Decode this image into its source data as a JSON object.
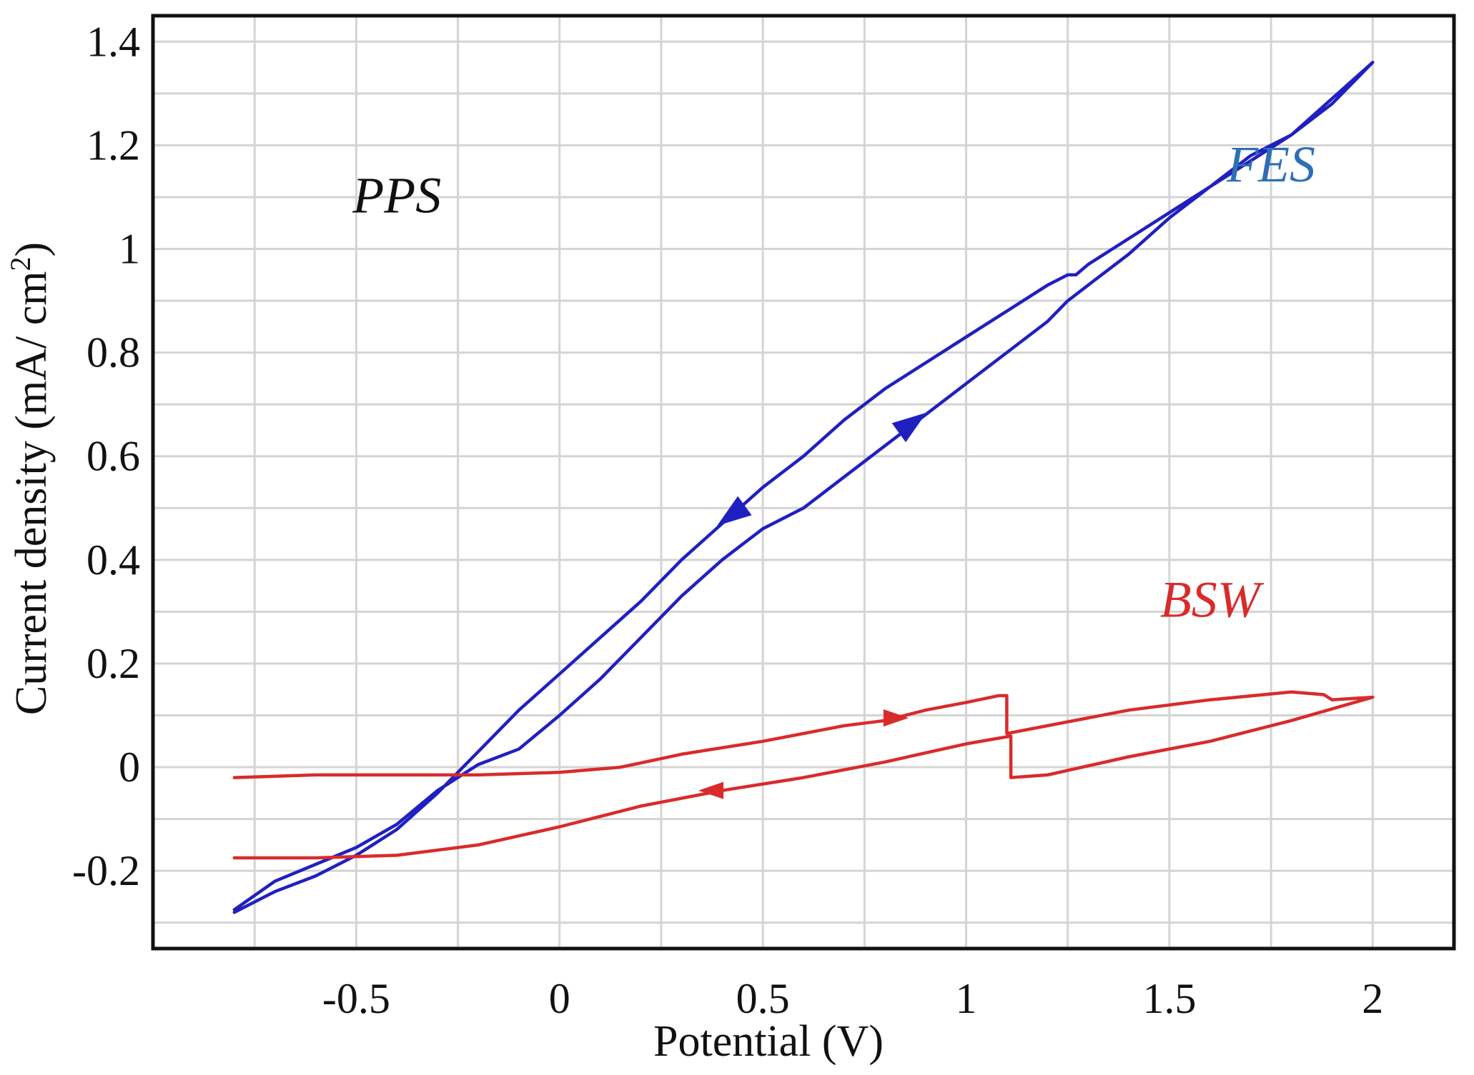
{
  "chart_data": {
    "type": "line",
    "title": "",
    "xlabel": "Potential (V)",
    "ylabel": "Current density (mA/ cm²)",
    "ylabel_main": "Current density (mA/ cm",
    "ylabel_sup": "2",
    "ylabel_close": ")",
    "xlim": [
      -1.0,
      2.2
    ],
    "ylim": [
      -0.35,
      1.45
    ],
    "grid": true,
    "x_ticks": [
      -0.5,
      0,
      0.5,
      1,
      1.5,
      2
    ],
    "x_tick_labels": [
      "-0.5",
      "0",
      "0.5",
      "1",
      "1.5",
      "2"
    ],
    "y_ticks": [
      -0.2,
      0,
      0.2,
      0.4,
      0.6,
      0.8,
      1,
      1.2,
      1.4
    ],
    "y_tick_labels": [
      "-0.2",
      "0",
      "0.2",
      "0.4",
      "0.6",
      "0.8",
      "1",
      "1.2",
      "1.4"
    ],
    "annotations": [
      {
        "text": "PPS",
        "x": -0.4,
        "y": 1.07,
        "color": "#111111"
      },
      {
        "text": "FES",
        "x": 1.75,
        "y": 1.13,
        "color": "#2e6fb5"
      },
      {
        "text": "BSW",
        "x": 1.6,
        "y": 0.29,
        "color": "#d92b2b"
      }
    ],
    "series": [
      {
        "name": "FES",
        "color": "#2020c0",
        "points": [
          [
            -0.8,
            -0.275
          ],
          [
            -0.7,
            -0.22
          ],
          [
            -0.5,
            -0.155
          ],
          [
            -0.4,
            -0.11
          ],
          [
            -0.3,
            -0.045
          ],
          [
            -0.2,
            0.005
          ],
          [
            -0.1,
            0.035
          ],
          [
            0.0,
            0.1
          ],
          [
            0.1,
            0.17
          ],
          [
            0.2,
            0.25
          ],
          [
            0.3,
            0.33
          ],
          [
            0.4,
            0.4
          ],
          [
            0.5,
            0.46
          ],
          [
            0.6,
            0.5
          ],
          [
            0.7,
            0.56
          ],
          [
            0.8,
            0.62
          ],
          [
            0.9,
            0.68
          ],
          [
            1.0,
            0.74
          ],
          [
            1.1,
            0.8
          ],
          [
            1.2,
            0.86
          ],
          [
            1.25,
            0.9
          ],
          [
            1.3,
            0.93
          ],
          [
            1.4,
            0.99
          ],
          [
            1.5,
            1.06
          ],
          [
            1.6,
            1.12
          ],
          [
            1.7,
            1.18
          ],
          [
            1.8,
            1.22
          ],
          [
            1.9,
            1.28
          ],
          [
            2.0,
            1.36
          ],
          [
            1.9,
            1.29
          ],
          [
            1.8,
            1.22
          ],
          [
            1.7,
            1.17
          ],
          [
            1.6,
            1.12
          ],
          [
            1.5,
            1.07
          ],
          [
            1.4,
            1.02
          ],
          [
            1.3,
            0.97
          ],
          [
            1.27,
            0.95
          ],
          [
            1.25,
            0.95
          ],
          [
            1.2,
            0.93
          ],
          [
            1.1,
            0.88
          ],
          [
            1.0,
            0.83
          ],
          [
            0.9,
            0.78
          ],
          [
            0.8,
            0.73
          ],
          [
            0.7,
            0.67
          ],
          [
            0.6,
            0.6
          ],
          [
            0.5,
            0.54
          ],
          [
            0.4,
            0.47
          ],
          [
            0.3,
            0.4
          ],
          [
            0.2,
            0.32
          ],
          [
            0.1,
            0.25
          ],
          [
            0.0,
            0.18
          ],
          [
            -0.1,
            0.11
          ],
          [
            -0.2,
            0.03
          ],
          [
            -0.3,
            -0.05
          ],
          [
            -0.4,
            -0.12
          ],
          [
            -0.5,
            -0.17
          ],
          [
            -0.6,
            -0.21
          ],
          [
            -0.7,
            -0.24
          ],
          [
            -0.8,
            -0.28
          ]
        ],
        "arrows": [
          {
            "x": 0.86,
            "y": 0.66,
            "dir": "up-right"
          },
          {
            "x": 0.43,
            "y": 0.49,
            "dir": "down-left"
          }
        ]
      },
      {
        "name": "BSW",
        "color": "#d92b2b",
        "points": [
          [
            -0.8,
            -0.02
          ],
          [
            -0.6,
            -0.015
          ],
          [
            -0.4,
            -0.015
          ],
          [
            -0.2,
            -0.015
          ],
          [
            0.0,
            -0.01
          ],
          [
            0.15,
            0.0
          ],
          [
            0.3,
            0.025
          ],
          [
            0.5,
            0.05
          ],
          [
            0.7,
            0.08
          ],
          [
            0.8,
            0.09
          ],
          [
            0.9,
            0.11
          ],
          [
            1.0,
            0.125
          ],
          [
            1.08,
            0.138
          ],
          [
            1.1,
            0.138
          ],
          [
            1.1,
            0.065
          ],
          [
            1.2,
            0.08
          ],
          [
            1.4,
            0.11
          ],
          [
            1.6,
            0.13
          ],
          [
            1.8,
            0.145
          ],
          [
            1.88,
            0.14
          ],
          [
            1.9,
            0.13
          ],
          [
            2.0,
            0.135
          ],
          [
            1.8,
            0.09
          ],
          [
            1.6,
            0.05
          ],
          [
            1.4,
            0.02
          ],
          [
            1.2,
            -0.015
          ],
          [
            1.11,
            -0.02
          ],
          [
            1.11,
            0.06
          ],
          [
            1.0,
            0.045
          ],
          [
            0.8,
            0.01
          ],
          [
            0.6,
            -0.02
          ],
          [
            0.4,
            -0.045
          ],
          [
            0.2,
            -0.075
          ],
          [
            0.0,
            -0.115
          ],
          [
            -0.2,
            -0.15
          ],
          [
            -0.4,
            -0.17
          ],
          [
            -0.6,
            -0.175
          ],
          [
            -0.8,
            -0.175
          ]
        ],
        "arrows": [
          {
            "x": 0.82,
            "y": 0.095,
            "dir": "right"
          },
          {
            "x": 0.38,
            "y": -0.045,
            "dir": "left"
          }
        ]
      }
    ]
  }
}
